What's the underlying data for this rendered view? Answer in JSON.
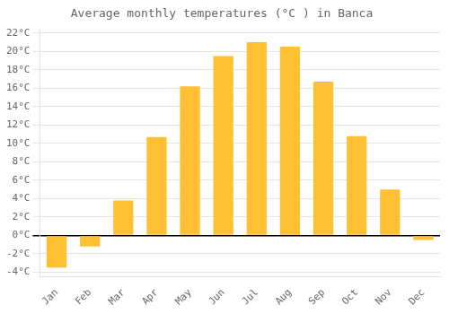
{
  "chart_data": {
    "type": "bar",
    "title": "Average monthly temperatures (°C ) in Banca",
    "categories": [
      "Jan",
      "Feb",
      "Mar",
      "Apr",
      "May",
      "Jun",
      "Jul",
      "Aug",
      "Sep",
      "Oct",
      "Nov",
      "Dec"
    ],
    "values": [
      -3.5,
      -1.2,
      3.8,
      10.7,
      16.2,
      19.5,
      21.0,
      20.5,
      16.7,
      10.8,
      5.0,
      -0.5
    ],
    "color": "#FFC133",
    "ylim": [
      -4.5,
      22.5
    ],
    "yticks": [
      {
        "value": -4,
        "label": "-4°C"
      },
      {
        "value": -2,
        "label": "-2°C"
      },
      {
        "value": 0,
        "label": "0°C"
      },
      {
        "value": 2,
        "label": "2°C"
      },
      {
        "value": 4,
        "label": "4°C"
      },
      {
        "value": 6,
        "label": "6°C"
      },
      {
        "value": 8,
        "label": "8°C"
      },
      {
        "value": 10,
        "label": "10°C"
      },
      {
        "value": 12,
        "label": "12°C"
      },
      {
        "value": 14,
        "label": "14°C"
      },
      {
        "value": 16,
        "label": "16°C"
      },
      {
        "value": 18,
        "label": "18°C"
      },
      {
        "value": 20,
        "label": "20°C"
      },
      {
        "value": 22,
        "label": "22°C"
      }
    ],
    "grid": true
  }
}
